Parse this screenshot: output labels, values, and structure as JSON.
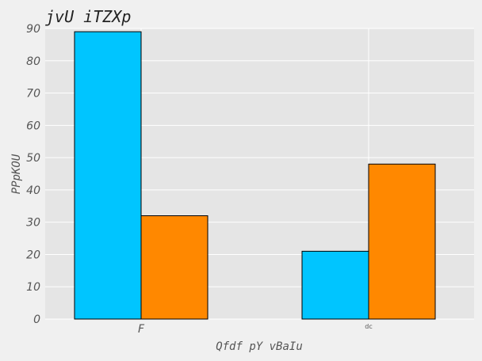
{
  "chart_data": {
    "type": "bar",
    "title": "jvU iTZXp",
    "xlabel": "Qfdf pY vBaIu",
    "ylabel": "PPpKOU",
    "categories": [
      "F",
      "dc"
    ],
    "series": [
      {
        "values": [
          89,
          21
        ],
        "color": "#00c5ff"
      },
      {
        "values": [
          32,
          48
        ],
        "color": "#ff8800"
      }
    ],
    "ylim": [
      0,
      90
    ],
    "yticks": [
      0,
      10,
      20,
      30,
      40,
      50,
      60,
      70,
      80,
      90
    ],
    "grid": true,
    "legend": "none",
    "colors": {
      "plot_bg": "#e5e5e5",
      "figure_bg": "#f0f0f0",
      "grid": "#ffffff",
      "edge": "#000000"
    }
  }
}
